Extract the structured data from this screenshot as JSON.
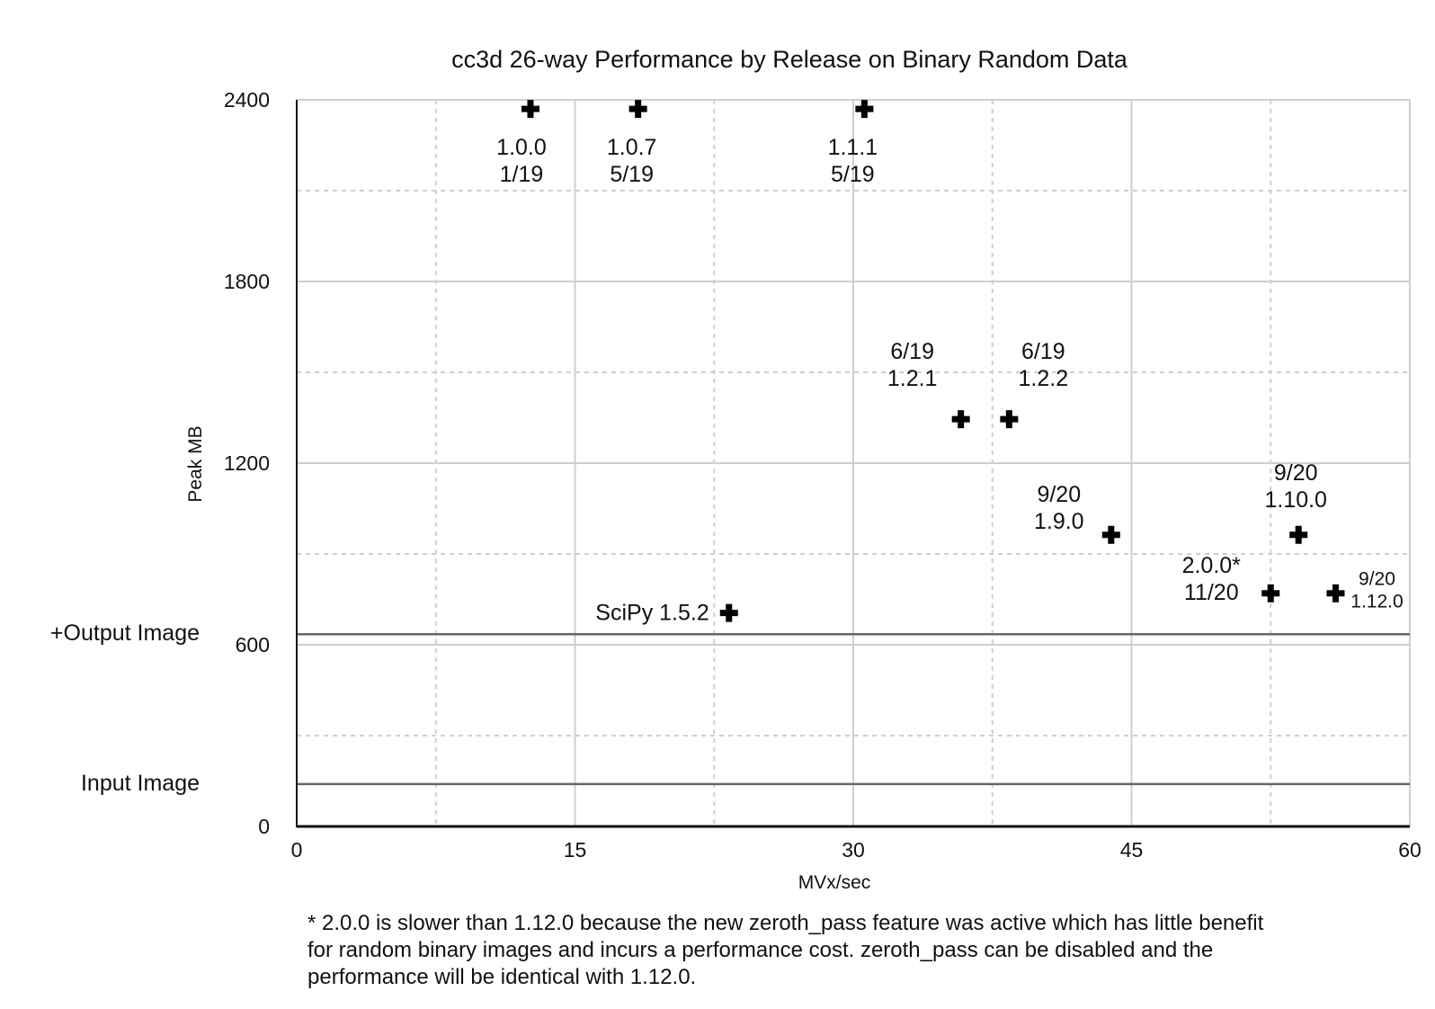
{
  "chart_data": {
    "type": "scatter",
    "title": "cc3d 26-way Performance by Release on Binary Random Data",
    "xlabel": "MVx/sec",
    "ylabel": "Peak MB",
    "xlim": [
      0,
      60
    ],
    "ylim": [
      0,
      2400
    ],
    "x_ticks": [
      "0",
      "15",
      "30",
      "45",
      "60"
    ],
    "y_ticks": [
      "0",
      "600",
      "1200",
      "1800",
      "2400"
    ],
    "grid": true,
    "legend": "none",
    "points": [
      {
        "x": 12.6,
        "y": 2370,
        "label": [
          "1.0.0",
          "1/19"
        ]
      },
      {
        "x": 18.4,
        "y": 2370,
        "label": [
          "1.0.7",
          "5/19"
        ]
      },
      {
        "x": 30.6,
        "y": 2370,
        "label": [
          "1.1.1",
          "5/19"
        ]
      },
      {
        "x": 35.8,
        "y": 1345,
        "label": [
          "6/19",
          "1.2.1"
        ]
      },
      {
        "x": 38.4,
        "y": 1345,
        "label": [
          "6/19",
          "1.2.2"
        ]
      },
      {
        "x": 43.9,
        "y": 963,
        "label": [
          "9/20",
          "1.9.0"
        ]
      },
      {
        "x": 54.0,
        "y": 963,
        "label": [
          "9/20",
          "1.10.0"
        ]
      },
      {
        "x": 52.5,
        "y": 770,
        "label": [
          "2.0.0*",
          "11/20"
        ]
      },
      {
        "x": 56.0,
        "y": 770,
        "label": [
          "9/20",
          "1.12.0"
        ]
      },
      {
        "x": 23.3,
        "y": 705,
        "label": [
          "SciPy 1.5.2"
        ]
      }
    ],
    "reference_lines": [
      {
        "y": 635,
        "label": "+Output Image"
      },
      {
        "y": 140,
        "label": "Input Image"
      }
    ]
  },
  "footnote": [
    "* 2.0.0 is slower than 1.12.0 because the new zeroth_pass feature was active which has little benefit",
    "for random binary images and incurs a performance cost. zeroth_pass can be disabled and the",
    "performance will be identical with 1.12.0."
  ]
}
